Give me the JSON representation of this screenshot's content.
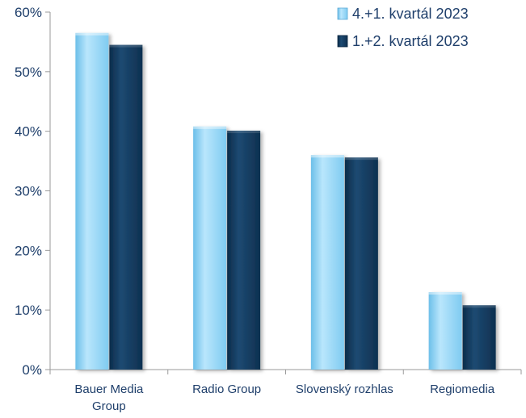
{
  "chart_data": {
    "type": "bar",
    "categories": [
      [
        "Bauer Media",
        "Group"
      ],
      [
        "Radio Group"
      ],
      [
        "Slovenský rozhlas"
      ],
      [
        "Regiomedia"
      ]
    ],
    "series": [
      {
        "name": "4.+1. kvartál 2023",
        "values": [
          0.565,
          0.408,
          0.36,
          0.13
        ],
        "color": "#8fd3f7"
      },
      {
        "name": "1.+2. kvartál 2023",
        "values": [
          0.545,
          0.401,
          0.356,
          0.108
        ],
        "color": "#123c60"
      }
    ],
    "y_ticks": [
      "0%",
      "10%",
      "20%",
      "30%",
      "40%",
      "50%",
      "60%"
    ],
    "ylim": [
      0,
      0.6
    ],
    "legend_position": "top-right",
    "grid": false
  }
}
